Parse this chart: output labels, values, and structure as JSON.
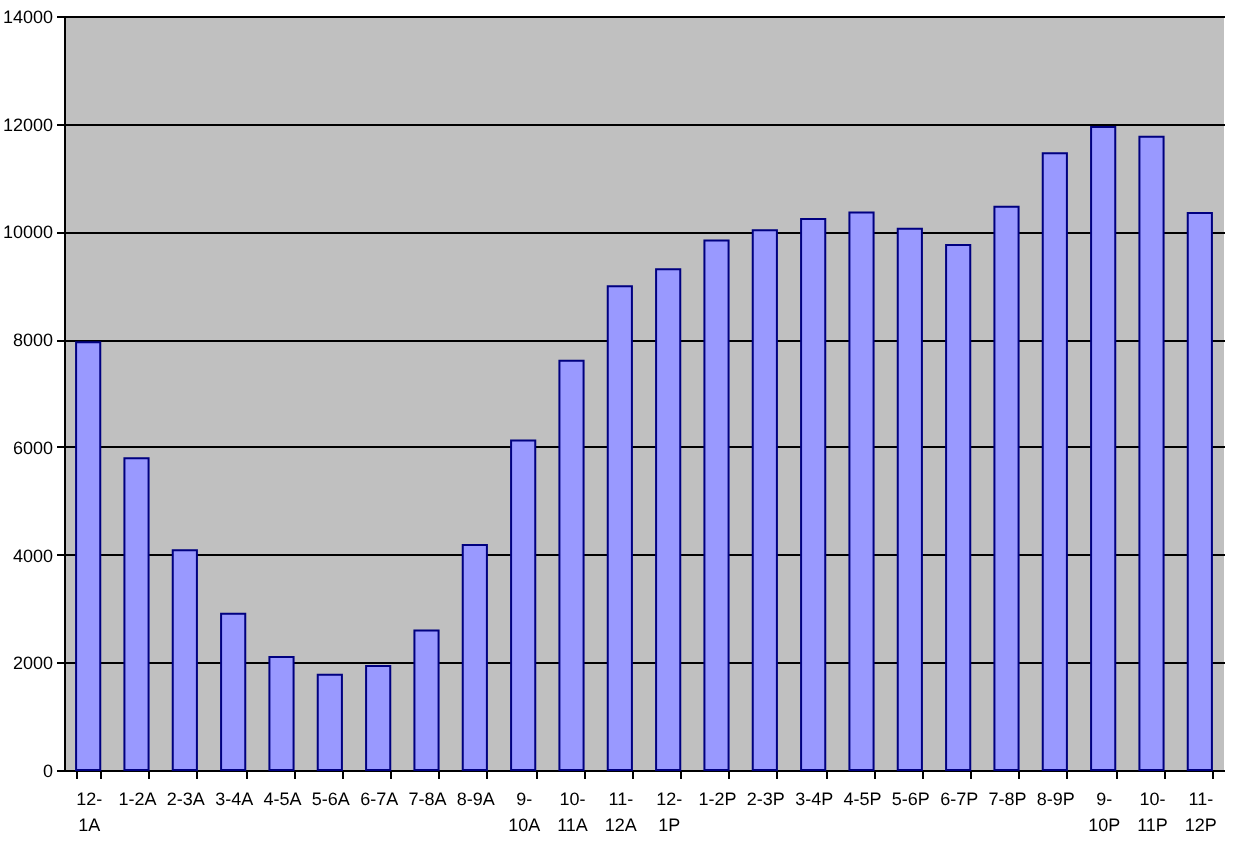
{
  "chart_data": {
    "type": "bar",
    "categories": [
      "12-1A",
      "1-2A",
      "2-3A",
      "3-4A",
      "4-5A",
      "5-6A",
      "6-7A",
      "7-8A",
      "8-9A",
      "9-10A",
      "10-11A",
      "11-12A",
      "12-1P",
      "1-2P",
      "2-3P",
      "3-4P",
      "4-5P",
      "5-6P",
      "6-7P",
      "7-8P",
      "8-9P",
      "9-10P",
      "10-11P",
      "11-12P"
    ],
    "values": [
      7940,
      5790,
      4080,
      2900,
      2100,
      1770,
      1930,
      2590,
      4180,
      6120,
      7600,
      8980,
      9300,
      9830,
      10020,
      10230,
      10350,
      10050,
      9750,
      10460,
      11450,
      11940,
      11760,
      10340
    ],
    "color": "#9999ff",
    "ylim": [
      0,
      14000
    ],
    "yticks": [
      0,
      2000,
      4000,
      6000,
      8000,
      10000,
      12000,
      14000
    ],
    "grid": "y"
  }
}
